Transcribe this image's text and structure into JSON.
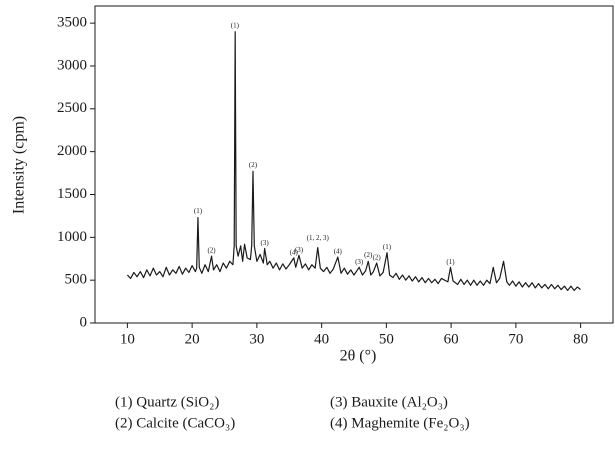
{
  "chart_data": {
    "type": "line",
    "x_label": "2θ (°)",
    "y_label": "Intensity (cpm)",
    "xlim": [
      5,
      85
    ],
    "ylim": [
      0,
      3700
    ],
    "xticks": [
      10,
      20,
      30,
      40,
      50,
      60,
      70,
      80
    ],
    "yticks": [
      0,
      500,
      1000,
      1500,
      2000,
      2500,
      3000,
      3500
    ],
    "series": [
      {
        "color": "#1a1a1a",
        "x": [
          10,
          10.5,
          11,
          11.5,
          12,
          12.5,
          13,
          13.5,
          14,
          14.5,
          15,
          15.5,
          16,
          16.5,
          17,
          17.5,
          18,
          18.5,
          19,
          19.5,
          20,
          20.5,
          20.7,
          20.9,
          21.1,
          21.5,
          22,
          22.5,
          23,
          23.3,
          23.8,
          24.3,
          24.8,
          25.3,
          25.8,
          26.3,
          26.5,
          26.65,
          26.8,
          27.1,
          27.5,
          27.8,
          28.1,
          28.5,
          29,
          29.2,
          29.4,
          29.6,
          30,
          30.5,
          31,
          31.2,
          31.6,
          32,
          32.5,
          33,
          33.5,
          34,
          34.5,
          35,
          35.7,
          36,
          36.5,
          37,
          37.5,
          38,
          38.5,
          39,
          39.4,
          39.8,
          40.3,
          40.8,
          41.3,
          41.8,
          42.5,
          43,
          43.5,
          44,
          44.5,
          45,
          45.8,
          46.3,
          46.8,
          47.2,
          47.6,
          48,
          48.5,
          49,
          49.5,
          50.1,
          50.5,
          51,
          51.5,
          52,
          52.5,
          53,
          53.5,
          54,
          54.5,
          55,
          55.5,
          56,
          56.5,
          57,
          57.5,
          58,
          58.5,
          59.5,
          59.9,
          60.3,
          61,
          61.5,
          62,
          62.5,
          63,
          63.5,
          64,
          64.5,
          65,
          65.5,
          66,
          66.5,
          67,
          67.5,
          68.1,
          68.6,
          69,
          69.5,
          70,
          70.5,
          71,
          71.5,
          72,
          72.5,
          73,
          73.5,
          74,
          74.5,
          75,
          75.5,
          76,
          76.5,
          77,
          77.5,
          78,
          78.5,
          79,
          79.5,
          80
        ],
        "values": [
          560,
          520,
          590,
          540,
          600,
          530,
          620,
          550,
          640,
          560,
          600,
          540,
          650,
          560,
          620,
          580,
          660,
          570,
          640,
          590,
          670,
          600,
          640,
          1230,
          650,
          580,
          680,
          600,
          780,
          620,
          680,
          600,
          700,
          640,
          720,
          680,
          900,
          3400,
          900,
          780,
          900,
          720,
          920,
          760,
          740,
          900,
          1770,
          900,
          720,
          800,
          700,
          870,
          680,
          720,
          640,
          700,
          620,
          690,
          630,
          680,
          760,
          650,
          790,
          640,
          690,
          620,
          680,
          640,
          880,
          640,
          600,
          650,
          580,
          630,
          770,
          580,
          640,
          570,
          620,
          560,
          650,
          560,
          610,
          720,
          560,
          600,
          700,
          550,
          590,
          820,
          560,
          530,
          580,
          510,
          560,
          500,
          550,
          490,
          540,
          480,
          530,
          470,
          520,
          470,
          510,
          460,
          520,
          480,
          650,
          490,
          450,
          510,
          450,
          500,
          440,
          500,
          440,
          490,
          440,
          500,
          460,
          650,
          470,
          520,
          720,
          480,
          440,
          490,
          430,
          480,
          420,
          470,
          420,
          470,
          410,
          460,
          410,
          450,
          400,
          450,
          400,
          440,
          390,
          430,
          380,
          430,
          380,
          420,
          390
        ]
      }
    ],
    "annotations": [
      {
        "text": "(1)",
        "x": 20.9,
        "y": 1300
      },
      {
        "text": "(2)",
        "x": 23,
        "y": 840
      },
      {
        "text": "(1)",
        "x": 26.6,
        "y": 3470
      },
      {
        "text": "(2)",
        "x": 29.4,
        "y": 1840
      },
      {
        "text": "(3)",
        "x": 31.2,
        "y": 930
      },
      {
        "text": "(4)",
        "x": 35.7,
        "y": 820
      },
      {
        "text": "(3)",
        "x": 36.5,
        "y": 850
      },
      {
        "text": "(1, 2, 3)",
        "x": 39.4,
        "y": 990
      },
      {
        "text": "(4)",
        "x": 42.5,
        "y": 830
      },
      {
        "text": "(3)",
        "x": 45.8,
        "y": 710
      },
      {
        "text": "(2)",
        "x": 47.2,
        "y": 790
      },
      {
        "text": "(2)",
        "x": 48.5,
        "y": 760
      },
      {
        "text": "(1)",
        "x": 50.1,
        "y": 880
      },
      {
        "text": "(1)",
        "x": 59.9,
        "y": 710
      }
    ],
    "legend_items": [
      "(1) Quartz (SiO₂)",
      "(3) Bauxite (Al₂O₃)",
      "(2) Calcite (CaCO₃)",
      "(4) Maghemite (Fe₂O₃)"
    ]
  }
}
